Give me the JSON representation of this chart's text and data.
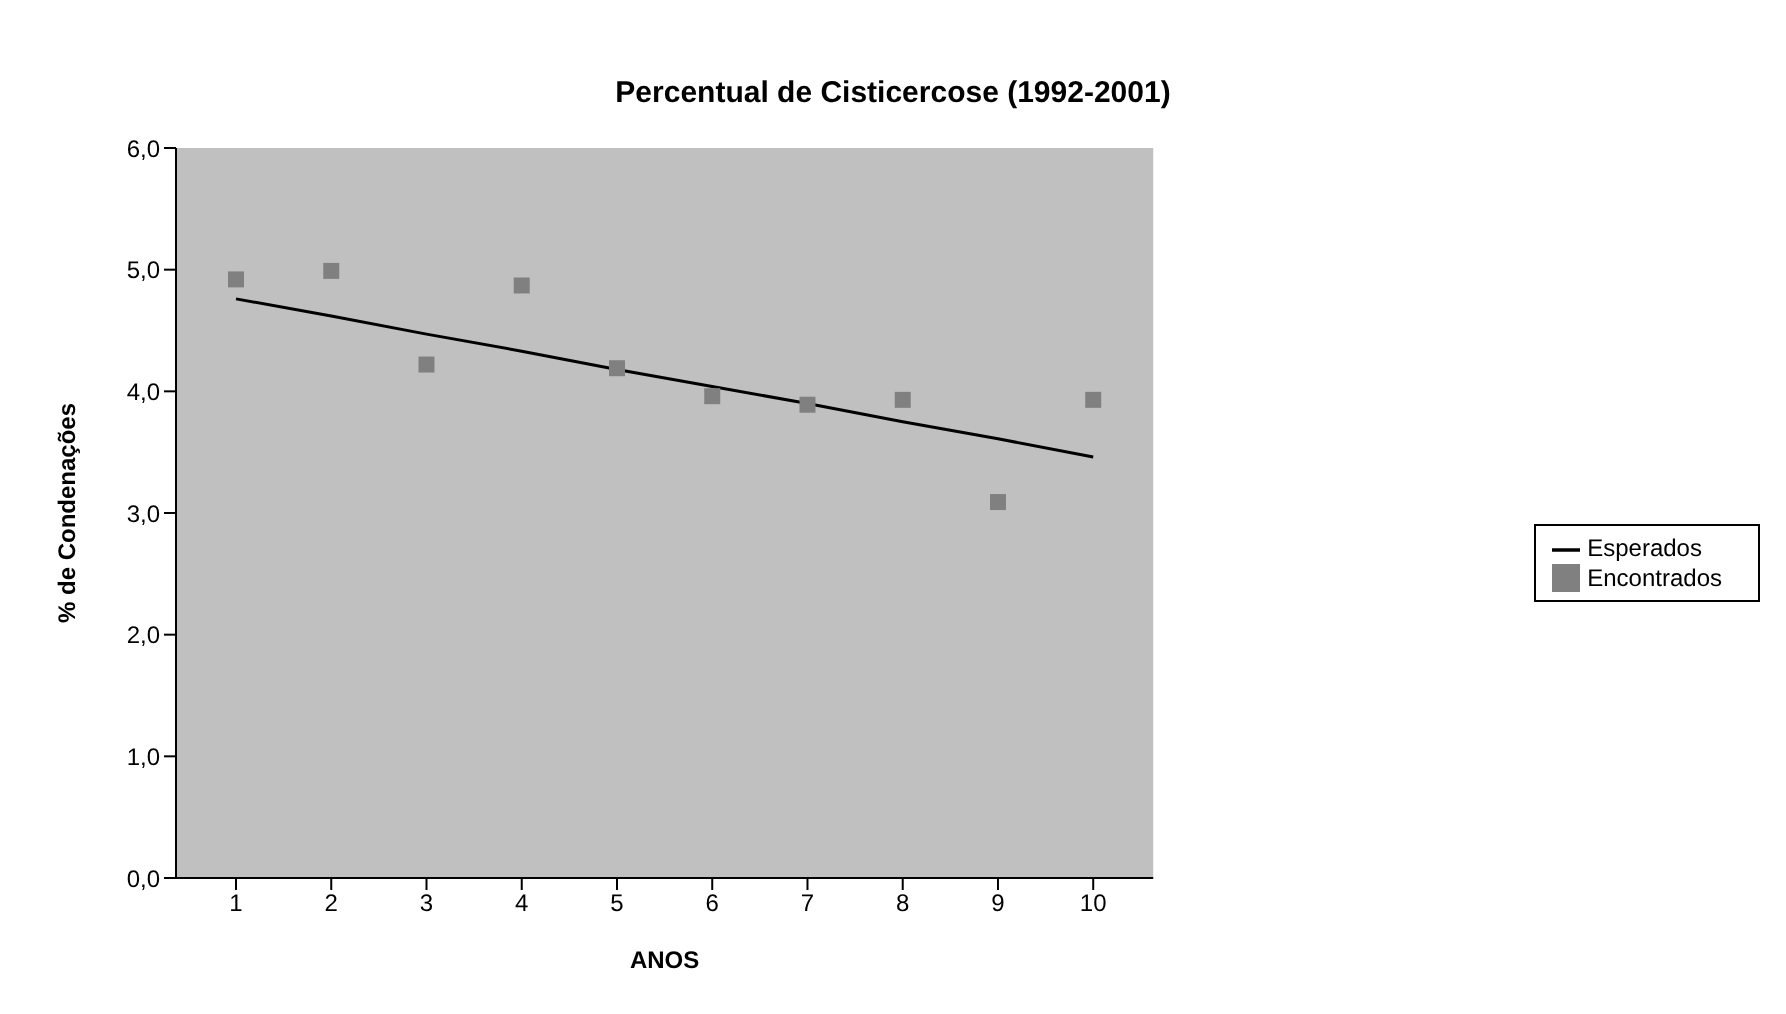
{
  "chart_data": {
    "type": "line",
    "title": "Percentual de Cisticercose (1992-2001)",
    "xlabel": "ANOS",
    "ylabel": "% de Condenações",
    "categories": [
      "1",
      "2",
      "3",
      "4",
      "5",
      "6",
      "7",
      "8",
      "9",
      "10"
    ],
    "series": [
      {
        "name": "Esperados",
        "color": "#000000",
        "marker": "none",
        "values": [
          4.76,
          4.62,
          4.47,
          4.33,
          4.18,
          4.04,
          3.9,
          3.75,
          3.61,
          3.46
        ]
      },
      {
        "name": "Encontrados",
        "type": "scatter",
        "color": "#808080",
        "marker": "square",
        "values": [
          4.92,
          4.99,
          4.22,
          4.87,
          4.19,
          3.96,
          3.89,
          3.93,
          3.09,
          3.93
        ]
      }
    ],
    "ylim": [
      0,
      6
    ],
    "yticks": [
      {
        "value": 0,
        "label": "0,0"
      },
      {
        "value": 1,
        "label": "1,0"
      },
      {
        "value": 2,
        "label": "2,0"
      },
      {
        "value": 3,
        "label": "3,0"
      },
      {
        "value": 4,
        "label": "4,0"
      },
      {
        "value": 5,
        "label": "5,0"
      },
      {
        "value": 6,
        "label": "6,0"
      }
    ],
    "grid": false,
    "legend": "right"
  }
}
